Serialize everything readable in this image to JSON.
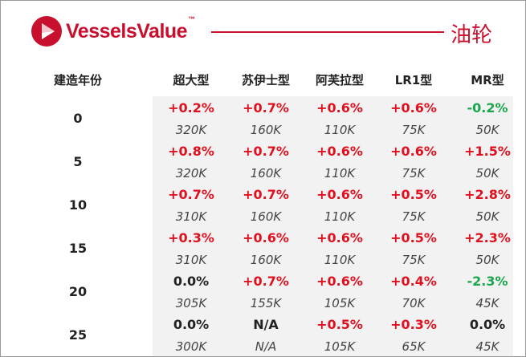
{
  "header": {
    "brand_name": "VesselsValue",
    "brand_tm": "™",
    "title": "油轮",
    "brand_color": "#c8102e"
  },
  "columns": [
    "建造年份",
    "超大型",
    "苏伊士型",
    "阿芙拉型",
    "LR1型",
    "MR型"
  ],
  "rows": [
    {
      "age": "0",
      "cells": [
        {
          "pct": "+0.2%",
          "val": "320K",
          "dir": "up"
        },
        {
          "pct": "+0.7%",
          "val": "160K",
          "dir": "up"
        },
        {
          "pct": "+0.6%",
          "val": "110K",
          "dir": "up"
        },
        {
          "pct": "+0.6%",
          "val": "75K",
          "dir": "up"
        },
        {
          "pct": "-0.2%",
          "val": "50K",
          "dir": "down"
        }
      ]
    },
    {
      "age": "5",
      "cells": [
        {
          "pct": "+0.8%",
          "val": "320K",
          "dir": "up"
        },
        {
          "pct": "+0.7%",
          "val": "160K",
          "dir": "up"
        },
        {
          "pct": "+0.6%",
          "val": "110K",
          "dir": "up"
        },
        {
          "pct": "+0.6%",
          "val": "75K",
          "dir": "up"
        },
        {
          "pct": "+1.5%",
          "val": "50K",
          "dir": "up"
        }
      ]
    },
    {
      "age": "10",
      "cells": [
        {
          "pct": "+0.7%",
          "val": "310K",
          "dir": "up"
        },
        {
          "pct": "+0.7%",
          "val": "160K",
          "dir": "up"
        },
        {
          "pct": "+0.6%",
          "val": "110K",
          "dir": "up"
        },
        {
          "pct": "+0.5%",
          "val": "75K",
          "dir": "up"
        },
        {
          "pct": "+2.8%",
          "val": "50K",
          "dir": "up"
        }
      ]
    },
    {
      "age": "15",
      "cells": [
        {
          "pct": "+0.3%",
          "val": "310K",
          "dir": "up"
        },
        {
          "pct": "+0.6%",
          "val": "160K",
          "dir": "up"
        },
        {
          "pct": "+0.6%",
          "val": "110K",
          "dir": "up"
        },
        {
          "pct": "+0.5%",
          "val": "75K",
          "dir": "up"
        },
        {
          "pct": "+2.3%",
          "val": "50K",
          "dir": "up"
        }
      ]
    },
    {
      "age": "20",
      "cells": [
        {
          "pct": "0.0%",
          "val": "305K",
          "dir": "flat"
        },
        {
          "pct": "+0.7%",
          "val": "155K",
          "dir": "up"
        },
        {
          "pct": "+0.6%",
          "val": "105K",
          "dir": "up"
        },
        {
          "pct": "+0.4%",
          "val": "70K",
          "dir": "up"
        },
        {
          "pct": "-2.3%",
          "val": "45K",
          "dir": "down"
        }
      ]
    },
    {
      "age": "25",
      "cells": [
        {
          "pct": "0.0%",
          "val": "300K",
          "dir": "flat"
        },
        {
          "pct": "N/A",
          "val": "N/A",
          "dir": "flat"
        },
        {
          "pct": "+0.5%",
          "val": "105K",
          "dir": "up"
        },
        {
          "pct": "+0.3%",
          "val": "65K",
          "dir": "up"
        },
        {
          "pct": "0.0%",
          "val": "45K",
          "dir": "flat"
        }
      ]
    }
  ]
}
